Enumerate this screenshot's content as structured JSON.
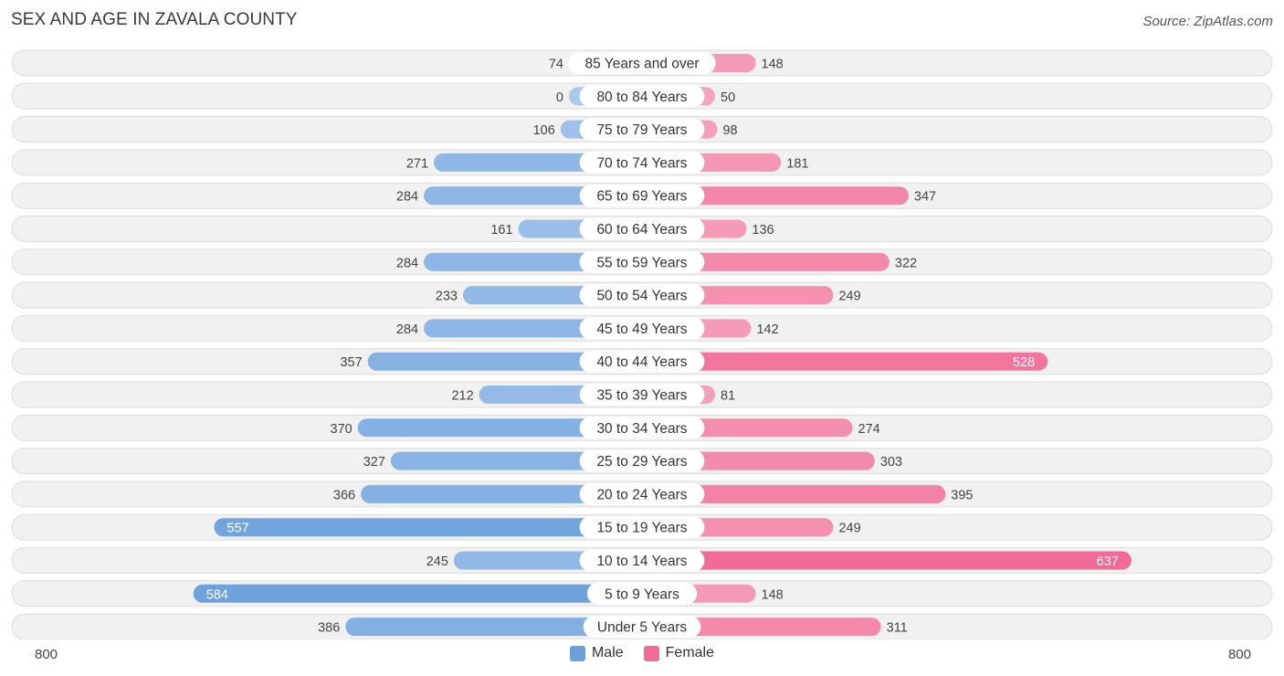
{
  "title": "SEX AND AGE IN ZAVALA COUNTY",
  "source": "Source: ZipAtlas.com",
  "colors": {
    "male": "#6a9fdc",
    "male_light": "#a9c8ec",
    "female": "#f06b96",
    "female_light": "#f6a8c0",
    "row_bg": "#f1f1f1",
    "row_border": "#dddddd"
  },
  "legend": {
    "male_label": "Male",
    "female_label": "Female"
  },
  "axis": {
    "left_label": "800",
    "right_label": "800"
  },
  "chart_data": {
    "type": "bar",
    "orientation": "horizontal-diverging",
    "title": "SEX AND AGE IN ZAVALA COUNTY",
    "xlim": [
      -800,
      800
    ],
    "categories": [
      "85 Years and over",
      "80 to 84 Years",
      "75 to 79 Years",
      "70 to 74 Years",
      "65 to 69 Years",
      "60 to 64 Years",
      "55 to 59 Years",
      "50 to 54 Years",
      "45 to 49 Years",
      "40 to 44 Years",
      "35 to 39 Years",
      "30 to 34 Years",
      "25 to 29 Years",
      "20 to 24 Years",
      "15 to 19 Years",
      "10 to 14 Years",
      "5 to 9 Years",
      "Under 5 Years"
    ],
    "series": [
      {
        "name": "Male",
        "values": [
          74,
          0,
          106,
          271,
          284,
          161,
          284,
          233,
          284,
          357,
          212,
          370,
          327,
          366,
          557,
          245,
          584,
          386
        ]
      },
      {
        "name": "Female",
        "values": [
          148,
          50,
          98,
          181,
          347,
          136,
          322,
          249,
          142,
          528,
          81,
          274,
          303,
          395,
          249,
          637,
          148,
          311
        ]
      }
    ],
    "legend_position": "bottom-center",
    "grid": false
  }
}
